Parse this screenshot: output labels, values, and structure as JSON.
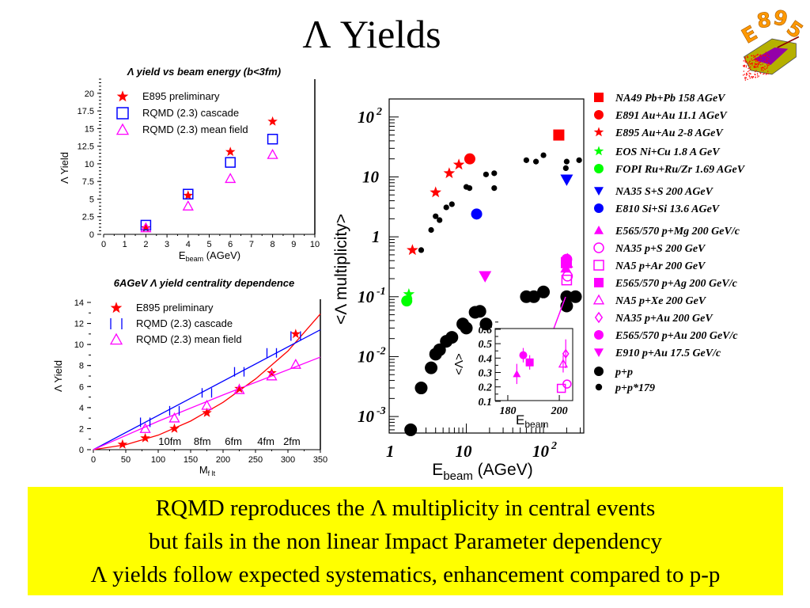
{
  "slide": {
    "title": "Λ Yields",
    "logo_text": "E895",
    "summary": [
      "RQMD reproduces the Λ multiplicity in central events",
      "but fails in the non linear Impact Parameter dependency",
      "Λ yields follow expected systematics, enhancement compared to p-p"
    ],
    "colors": {
      "summary_bg": "#ffff00",
      "logo": "#ff9900"
    }
  },
  "chart_data": [
    {
      "id": "yield-vs-energy",
      "type": "scatter",
      "title": "Λ yield vs beam energy (b<3fm)",
      "xlabel": "E",
      "xlabel_sub": "beam",
      "xlabel_unit": " (AGeV)",
      "ylabel": "Λ Yield",
      "xlim": [
        0,
        10
      ],
      "ylim": [
        0,
        22
      ],
      "xticks": [
        "0",
        "1",
        "2",
        "3",
        "4",
        "5",
        "6",
        "7",
        "8",
        "9",
        "10"
      ],
      "yticks": [
        "0",
        "2.5",
        "5",
        "7.5",
        "10",
        "12.5",
        "15",
        "17.5",
        "20"
      ],
      "legend_placement": "top-left",
      "series": [
        {
          "name": "E895 preliminary",
          "marker": "star",
          "color": "#ff0000",
          "x": [
            2,
            4,
            6,
            8
          ],
          "y": [
            0.9,
            5.5,
            11.7,
            16.0
          ]
        },
        {
          "name": "RQMD (2.3) cascade",
          "marker": "square-open",
          "color": "#0000ff",
          "x": [
            2,
            4,
            6,
            8
          ],
          "y": [
            1.3,
            5.7,
            10.2,
            13.5
          ]
        },
        {
          "name": "RQMD (2.3) mean field",
          "marker": "triangle-open",
          "color": "#ff00ff",
          "x": [
            2,
            4,
            6,
            8
          ],
          "y": [
            0.9,
            4.0,
            7.9,
            11.3
          ]
        }
      ]
    },
    {
      "id": "centrality",
      "type": "scatter",
      "title": "6AGeV Λ yield centrality dependence",
      "xlabel": "M",
      "xlabel_sub": "f lt",
      "xlabel_unit": "",
      "ylabel": "Λ Yield",
      "xlim": [
        0,
        350
      ],
      "ylim": [
        0,
        14.3
      ],
      "xticks": [
        "0",
        "50",
        "100",
        "150",
        "200",
        "250",
        "300",
        "350"
      ],
      "yticks": [
        "0",
        "2",
        "4",
        "6",
        "8",
        "10",
        "12",
        "14"
      ],
      "legend_placement": "top-left",
      "annotations": [
        {
          "text": "10fm",
          "x": 118
        },
        {
          "text": "8fm",
          "x": 168
        },
        {
          "text": "6fm",
          "x": 216
        },
        {
          "text": "4fm",
          "x": 266
        },
        {
          "text": "2fm",
          "x": 306
        }
      ],
      "series": [
        {
          "name": "E895 preliminary",
          "marker": "star",
          "color": "#ff0000",
          "x": [
            45,
            80,
            125,
            175,
            225,
            275,
            312
          ],
          "y": [
            0.5,
            1.1,
            2.0,
            3.5,
            5.8,
            7.3,
            11.0
          ],
          "line": [
            [
              0,
              0
            ],
            [
              50,
              0.47
            ],
            [
              100,
              1.38
            ],
            [
              150,
              2.72
            ],
            [
              200,
              4.5
            ],
            [
              250,
              6.72
            ],
            [
              300,
              9.38
            ],
            [
              350,
              12.9
            ]
          ]
        },
        {
          "name": "RQMD (2.3) cascade",
          "marker": "bracket",
          "color": "#0000ff",
          "x": [
            80,
            125,
            175,
            225,
            275,
            312
          ],
          "y": [
            2.6,
            3.7,
            5.4,
            7.4,
            9.2,
            10.8
          ],
          "line": [
            [
              0,
              0
            ],
            [
              350,
              11.4
            ]
          ]
        },
        {
          "name": "RQMD (2.3) mean field",
          "marker": "triangle-open",
          "color": "#ff00ff",
          "x": [
            80,
            125,
            175,
            225,
            275,
            312
          ],
          "y": [
            2.0,
            3.0,
            4.2,
            5.7,
            7.0,
            8.1
          ],
          "line": [
            [
              0,
              0
            ],
            [
              100,
              2.7
            ],
            [
              200,
              5.2
            ],
            [
              350,
              8.8
            ]
          ]
        }
      ]
    },
    {
      "id": "systematics",
      "type": "scatter",
      "xscale": "log",
      "yscale": "log",
      "xlabel": "E",
      "xlabel_sub": "beam",
      "xlabel_unit": " (AGeV)",
      "ylabel": "<Λ multiplicity>",
      "xlim": [
        1,
        333
      ],
      "ylim": [
        0.00053,
        200
      ],
      "xticks": [
        {
          "v": 1,
          "base": "1",
          "exp": ""
        },
        {
          "v": 10,
          "base": "10",
          "exp": ""
        },
        {
          "v": 100,
          "base": "10",
          "exp": "2"
        }
      ],
      "yticks": [
        {
          "v": 100,
          "base": "10",
          "exp": "2"
        },
        {
          "v": 10,
          "base": "10",
          "exp": ""
        },
        {
          "v": 1,
          "base": "1",
          "exp": ""
        },
        {
          "v": 0.1,
          "base": "10",
          "exp": "-1"
        },
        {
          "v": 0.01,
          "base": "10",
          "exp": "-2"
        },
        {
          "v": 0.001,
          "base": "10",
          "exp": "-3"
        }
      ],
      "legend_placement": "right-outside",
      "series": [
        {
          "name": "NA49 Pb+Pb 158 AGeV",
          "marker": "square-filled",
          "color": "#ff0000",
          "x": [
            158
          ],
          "y": [
            50
          ]
        },
        {
          "name": "E891 Au+Au 11.1 AGeV",
          "marker": "circle-filled",
          "color": "#ff0000",
          "x": [
            11.1
          ],
          "y": [
            20
          ]
        },
        {
          "name": "E895 Au+Au 2-8 AGeV",
          "marker": "star",
          "color": "#ff0000",
          "x": [
            2,
            4,
            6,
            8
          ],
          "y": [
            0.6,
            5.5,
            11.5,
            16
          ]
        },
        {
          "name": "EOS Ni+Cu 1.8 A GeV",
          "marker": "star",
          "color": "#00ff00",
          "x": [
            1.8
          ],
          "y": [
            0.11
          ]
        },
        {
          "name": "FOPI Ru+Ru/Zr 1.69 AGeV",
          "marker": "circle-filled",
          "color": "#00ff00",
          "x": [
            1.69
          ],
          "y": [
            0.085
          ]
        },
        {
          "name": "NA35 S+S 200 AGeV",
          "marker": "triangle-down-filled",
          "color": "#0000ff",
          "x": [
            200
          ],
          "y": [
            9
          ]
        },
        {
          "name": "E810 Si+Si 13.6 AGeV",
          "marker": "circle-filled",
          "color": "#0000ff",
          "x": [
            13.6
          ],
          "y": [
            2.4
          ]
        },
        {
          "name": "E565/570 p+Mg 200 GeV/c",
          "marker": "triangle-filled",
          "color": "#ff00ff",
          "x": [
            195
          ],
          "y": [
            0.3
          ]
        },
        {
          "name": "NA35 p+S 200 GeV",
          "marker": "circle-open",
          "color": "#ff00ff",
          "x": [
            205
          ],
          "y": [
            0.22
          ]
        },
        {
          "name": "NA5 p+Ar 200 GeV",
          "marker": "square-open",
          "color": "#ff00ff",
          "x": [
            200
          ],
          "y": [
            0.19
          ]
        },
        {
          "name": "E565/570 p+Ag 200 GeV/c",
          "marker": "square-filled",
          "color": "#ff00ff",
          "x": [
            198
          ],
          "y": [
            0.37
          ]
        },
        {
          "name": "NA5 p+Xe 200 GeV",
          "marker": "triangle-open",
          "color": "#ff00ff",
          "x": [
            205
          ],
          "y": [
            0.36
          ]
        },
        {
          "name": "NA35 p+Au 200 GeV",
          "marker": "diamond-open",
          "color": "#ff00ff",
          "x": [
            205
          ],
          "y": [
            0.43
          ]
        },
        {
          "name": "E565/570 p+Au 200 GeV/c",
          "marker": "circle-filled",
          "color": "#ff00ff",
          "x": [
            200
          ],
          "y": [
            0.42
          ]
        },
        {
          "name": "E910 p+Au 17.5 GeV/c",
          "marker": "triangle-down-filled",
          "color": "#ff00ff",
          "x": [
            17.5
          ],
          "y": [
            0.22
          ]
        },
        {
          "name": "p+p",
          "marker": "dot-large",
          "color": "#000000",
          "x": [
            1.9,
            2.6,
            3.5,
            4,
            4.5,
            5.5,
            6.5,
            9,
            10,
            13,
            15,
            18,
            60,
            75,
            100,
            200,
            200,
            260
          ],
          "y": [
            0.0006,
            0.003,
            0.0065,
            0.011,
            0.013,
            0.018,
            0.021,
            0.035,
            0.03,
            0.055,
            0.057,
            0.035,
            0.1,
            0.1,
            0.12,
            0.07,
            0.1,
            0.1
          ]
        },
        {
          "name": "p+p*179",
          "marker": "dot-small",
          "color": "#000000",
          "x": [
            2.6,
            3.5,
            4,
            4.5,
            5.5,
            6.5,
            10,
            11,
            18,
            23,
            23,
            60,
            80,
            100,
            195,
            200,
            290
          ],
          "y": [
            0.6,
            1.3,
            2.2,
            1.9,
            3.1,
            3.5,
            6.8,
            6.5,
            11,
            11.5,
            6.5,
            19,
            18,
            23,
            14,
            18,
            19
          ]
        }
      ],
      "inset": {
        "xlabel": "E",
        "xlabel_sub": "beam",
        "ylabel": "<Λ>",
        "xlim": [
          175.1,
          205.2
        ],
        "ylim": [
          0.105,
          0.605
        ],
        "xticks": [
          "180",
          "200"
        ],
        "yticks": [
          "0.1",
          "0.2",
          "0.3",
          "0.4",
          "0.5",
          "0.6"
        ],
        "points": [
          {
            "series": "E565/570 p+Mg 200 GeV/c",
            "marker": "triangle-filled",
            "x": 183.5,
            "y": 0.29,
            "err": 0.07
          },
          {
            "series": "E565/570 p+Au 200 GeV/c",
            "marker": "circle-filled",
            "x": 186,
            "y": 0.42,
            "err": 0.05
          },
          {
            "series": "E565/570 p+Ag 200 GeV/c",
            "marker": "square-filled",
            "x": 188.5,
            "y": 0.37,
            "err": 0.05
          },
          {
            "series": "NA35 p+Au 200 GeV",
            "marker": "diamond-open",
            "x": 202.5,
            "y": 0.43,
            "err": 0.1
          },
          {
            "series": "NA5 p+Xe 200 GeV",
            "marker": "triangle-open",
            "x": 201.5,
            "y": 0.36,
            "err": 0.06
          },
          {
            "series": "NA35 p+S 200 GeV",
            "marker": "circle-open",
            "x": 203,
            "y": 0.22,
            "err": 0
          },
          {
            "series": "NA5 p+Ar 200 GeV",
            "marker": "square-open",
            "x": 200.8,
            "y": 0.19,
            "err": 0
          }
        ]
      }
    }
  ]
}
